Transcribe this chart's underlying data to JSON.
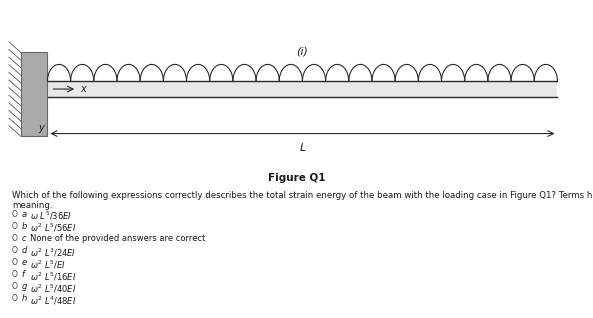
{
  "title": "Figure Q1",
  "question_line1": "Which of the following expressions correctly describes the total strain energy of the beam with the loading case in Figure Q1? Terms have their usual",
  "question_line2": "meaning.",
  "options": [
    {
      "label": "a",
      "text": "$\\omega\\ L^5/36EI$"
    },
    {
      "label": "b",
      "text": "$\\omega^2\\ L^5/56EI$"
    },
    {
      "label": "c",
      "text": "None of the provided answers are correct"
    },
    {
      "label": "d",
      "text": "$\\omega^2\\ L^3/24EI$"
    },
    {
      "label": "e",
      "text": "$\\omega^2\\ L^5/EI$"
    },
    {
      "label": "f",
      "text": "$\\omega^2\\ L^5/16EI$"
    },
    {
      "label": "g",
      "text": "$\\omega^2\\ L^5/40EI$"
    },
    {
      "label": "h",
      "text": "$\\omega^2\\ L^4/48EI$"
    }
  ],
  "bg_color": "#ffffff",
  "text_color": "#1a1a1a",
  "beam_color": "#2a2a2a",
  "wall_hatch_color": "#555555",
  "fig_width": 5.93,
  "fig_height": 3.18,
  "dpi": 100
}
